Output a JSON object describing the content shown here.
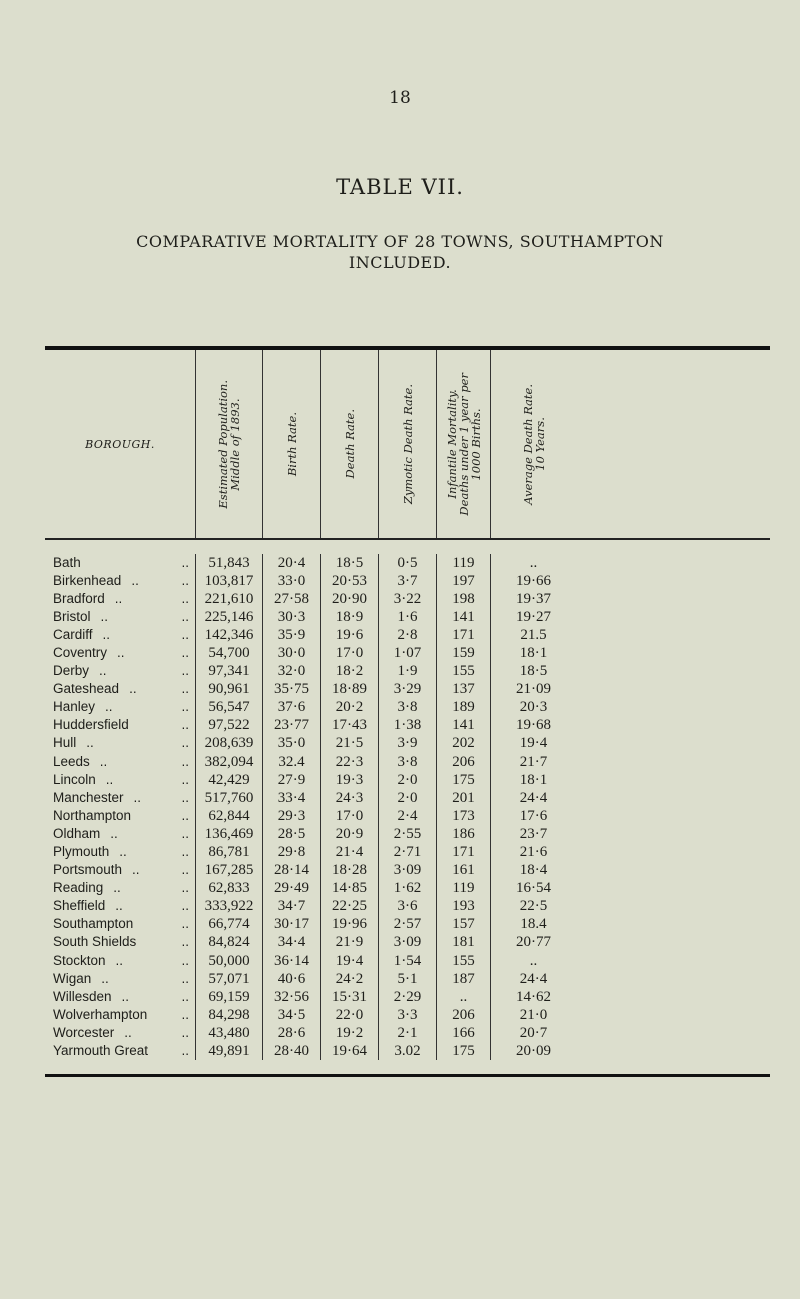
{
  "page_number": "18",
  "title": "TABLE VII.",
  "subtitle_line1": "COMPARATIVE MORTALITY OF 28 TOWNS, SOUTHAMPTON",
  "subtitle_line2": "INCLUDED.",
  "headers": {
    "borough": "BOROUGH.",
    "population": [
      "Estimated Population.",
      "Middle of 1893."
    ],
    "birth_rate": "Birth Rate.",
    "death_rate": "Death Rate.",
    "zymotic": "Zymotic Death Rate.",
    "infantile": [
      "Infantile Mortality.",
      "Deaths under 1 year per",
      "1000 Births."
    ],
    "average": [
      "Average Death Rate.",
      "10 Years."
    ]
  },
  "rows": [
    {
      "name": "Bath",
      "d1": "",
      "pop": "51,843",
      "birth": "20·4",
      "death": "18·5",
      "zym": "0·5",
      "inf": "119",
      "avg": ".."
    },
    {
      "name": "Birkenhead",
      "d1": "..",
      "pop": "103,817",
      "birth": "33·0",
      "death": "20·53",
      "zym": "3·7",
      "inf": "197",
      "avg": "19·66"
    },
    {
      "name": "Bradford",
      "d1": "..",
      "pop": "221,610",
      "birth": "27·58",
      "death": "20·90",
      "zym": "3·22",
      "inf": "198",
      "avg": "19·37"
    },
    {
      "name": "Bristol",
      "d1": "..",
      "pop": "225,146",
      "birth": "30·3",
      "death": "18·9",
      "zym": "1·6",
      "inf": "141",
      "avg": "19·27"
    },
    {
      "name": "Cardiff",
      "d1": "..",
      "pop": "142,346",
      "birth": "35·9",
      "death": "19·6",
      "zym": "2·8",
      "inf": "171",
      "avg": "21.5"
    },
    {
      "name": "Coventry",
      "d1": "..",
      "pop": "54,700",
      "birth": "30·0",
      "death": "17·0",
      "zym": "1·07",
      "inf": "159",
      "avg": "18·1"
    },
    {
      "name": "Derby",
      "d1": "..",
      "pop": "97,341",
      "birth": "32·0",
      "death": "18·2",
      "zym": "1·9",
      "inf": "155",
      "avg": "18·5"
    },
    {
      "name": "Gateshead",
      "d1": "..",
      "pop": "90,961",
      "birth": "35·75",
      "death": "18·89",
      "zym": "3·29",
      "inf": "137",
      "avg": "21·09"
    },
    {
      "name": "Hanley",
      "d1": "..",
      "pop": "56,547",
      "birth": "37·6",
      "death": "20·2",
      "zym": "3·8",
      "inf": "189",
      "avg": "20·3"
    },
    {
      "name": "Huddersfield",
      "d1": "",
      "pop": "97,522",
      "birth": "23·77",
      "death": "17·43",
      "zym": "1·38",
      "inf": "141",
      "avg": "19·68"
    },
    {
      "name": "Hull",
      "d1": "..",
      "pop": "208,639",
      "birth": "35·0",
      "death": "21·5",
      "zym": "3·9",
      "inf": "202",
      "avg": "19·4"
    },
    {
      "name": "Leeds",
      "d1": "..",
      "pop": "382,094",
      "birth": "32.4",
      "death": "22·3",
      "zym": "3·8",
      "inf": "206",
      "avg": "21·7"
    },
    {
      "name": "Lincoln",
      "d1": "..",
      "pop": "42,429",
      "birth": "27·9",
      "death": "19·3",
      "zym": "2·0",
      "inf": "175",
      "avg": "18·1"
    },
    {
      "name": "Manchester",
      "d1": "..",
      "pop": "517,760",
      "birth": "33·4",
      "death": "24·3",
      "zym": "2·0",
      "inf": "201",
      "avg": "24·4"
    },
    {
      "name": "Northampton",
      "d1": "",
      "pop": "62,844",
      "birth": "29·3",
      "death": "17·0",
      "zym": "2·4",
      "inf": "173",
      "avg": "17·6"
    },
    {
      "name": "Oldham",
      "d1": "..",
      "pop": "136,469",
      "birth": "28·5",
      "death": "20·9",
      "zym": "2·55",
      "inf": "186",
      "avg": "23·7"
    },
    {
      "name": "Plymouth",
      "d1": "..",
      "pop": "86,781",
      "birth": "29·8",
      "death": "21·4",
      "zym": "2·71",
      "inf": "171",
      "avg": "21·6"
    },
    {
      "name": "Portsmouth",
      "d1": "..",
      "pop": "167,285",
      "birth": "28·14",
      "death": "18·28",
      "zym": "3·09",
      "inf": "161",
      "avg": "18·4"
    },
    {
      "name": "Reading",
      "d1": "..",
      "pop": "62,833",
      "birth": "29·49",
      "death": "14·85",
      "zym": "1·62",
      "inf": "119",
      "avg": "16·54"
    },
    {
      "name": "Sheffield",
      "d1": "..",
      "pop": "333,922",
      "birth": "34·7",
      "death": "22·25",
      "zym": "3·6",
      "inf": "193",
      "avg": "22·5"
    },
    {
      "name": "Southampton",
      "d1": "",
      "pop": "66,774",
      "birth": "30·17",
      "death": "19·96",
      "zym": "2·57",
      "inf": "157",
      "avg": "18.4"
    },
    {
      "name": "South Shields",
      "d1": "",
      "pop": "84,824",
      "birth": "34·4",
      "death": "21·9",
      "zym": "3·09",
      "inf": "181",
      "avg": "20·77"
    },
    {
      "name": "Stockton",
      "d1": "..",
      "pop": "50,000",
      "birth": "36·14",
      "death": "19·4",
      "zym": "1·54",
      "inf": "155",
      "avg": ".."
    },
    {
      "name": "Wigan",
      "d1": "..",
      "pop": "57,071",
      "birth": "40·6",
      "death": "24·2",
      "zym": "5·1",
      "inf": "187",
      "avg": "24·4"
    },
    {
      "name": "Willesden",
      "d1": "..",
      "pop": "69,159",
      "birth": "32·56",
      "death": "15·31",
      "zym": "2·29",
      "inf": "..",
      "avg": "14·62"
    },
    {
      "name": "Wolverhampton",
      "d1": "",
      "pop": "84,298",
      "birth": "34·5",
      "death": "22·0",
      "zym": "3·3",
      "inf": "206",
      "avg": "21·0"
    },
    {
      "name": "Worcester",
      "d1": "..",
      "pop": "43,480",
      "birth": "28·6",
      "death": "19·2",
      "zym": "2·1",
      "inf": "166",
      "avg": "20·7"
    },
    {
      "name": "Yarmouth Great",
      "d1": "",
      "pop": "49,891",
      "birth": "28·40",
      "death": "19·64",
      "zym": "3.02",
      "inf": "175",
      "avg": "20·09"
    }
  ],
  "leader_dots": ".."
}
